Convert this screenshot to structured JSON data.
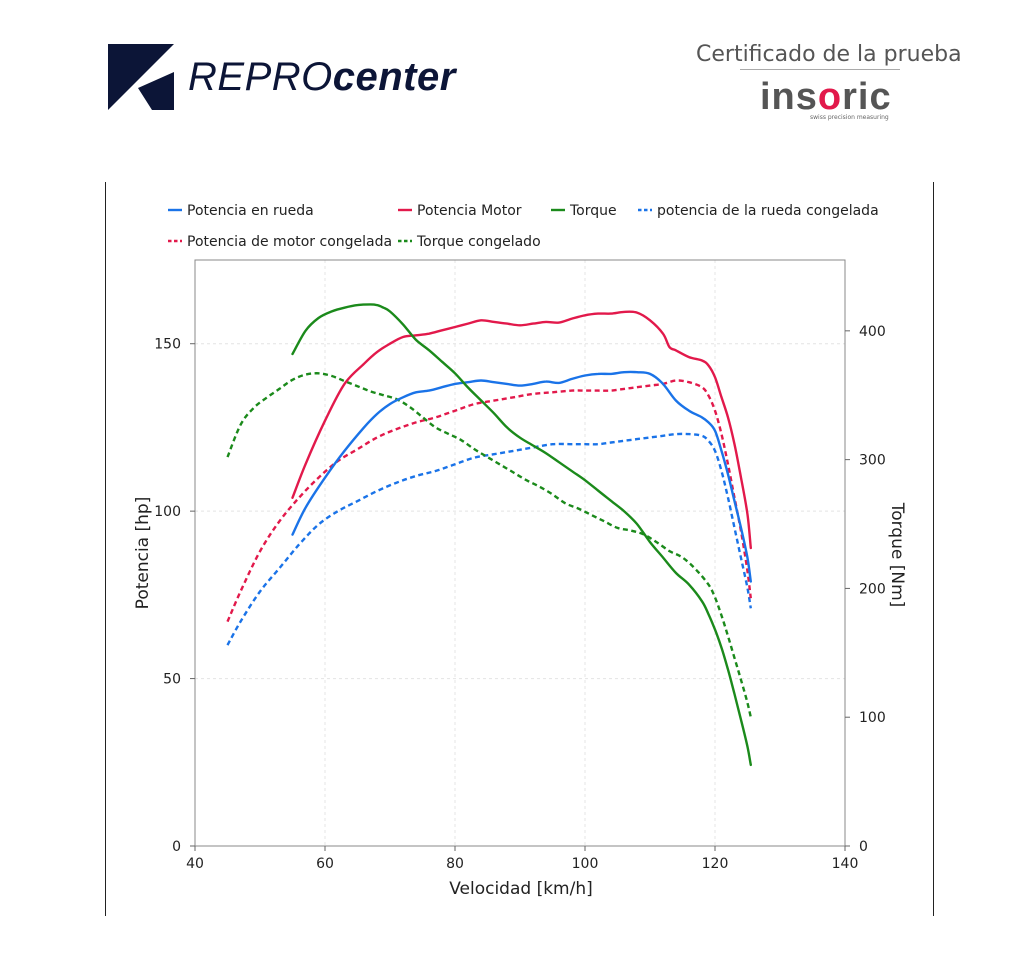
{
  "header": {
    "brand_light": "REPRO",
    "brand_bold": "center",
    "cert_title": "Certificado de la prueba",
    "partner_pre": "ins",
    "partner_o": "o",
    "partner_post": "ric",
    "partner_tagline": "swiss precision measuring"
  },
  "colors": {
    "brand_navy": "#0c1537",
    "red": "#e2194b",
    "blue": "#1a73e8",
    "green": "#1b8a1b"
  },
  "chart_data": {
    "type": "line",
    "xlabel": "Velocidad [km/h]",
    "ylabel_left": "Potencia [hp]",
    "ylabel_right": "Torque [Nm]",
    "xlim": [
      40,
      140
    ],
    "ylim_left": [
      0,
      175
    ],
    "ylim_right": [
      0,
      455
    ],
    "xticks": [
      40,
      60,
      80,
      100,
      120,
      140
    ],
    "yticks_left": [
      0,
      50,
      100,
      150
    ],
    "yticks_right": [
      0,
      100,
      200,
      300,
      400
    ],
    "grid": true,
    "legend_position": "top",
    "series": [
      {
        "name": "Potencia en rueda",
        "axis": "left",
        "color": "#1a73e8",
        "dashed": false,
        "x": [
          55,
          57,
          60,
          63,
          66,
          68,
          70,
          72,
          74,
          76,
          78,
          80,
          82,
          84,
          86,
          88,
          90,
          92,
          94,
          96,
          98,
          100,
          102,
          104,
          106,
          108,
          110,
          112,
          114,
          116,
          118,
          119,
          120,
          121,
          122,
          123,
          124,
          125,
          125.5
        ],
        "y": [
          93,
          101,
          110,
          118,
          125,
          129,
          132,
          134,
          135.5,
          136,
          137,
          138,
          138.5,
          139,
          138.5,
          138,
          137.5,
          138,
          138.7,
          138.3,
          139.5,
          140.5,
          141,
          141,
          141.5,
          141.5,
          141,
          138,
          133,
          130,
          128,
          126.5,
          124,
          118,
          111,
          103,
          95,
          86,
          79
        ]
      },
      {
        "name": "Potencia Motor",
        "axis": "left",
        "color": "#e2194b",
        "dashed": false,
        "x": [
          55,
          57,
          60,
          63,
          66,
          68,
          70,
          72,
          74,
          76,
          78,
          80,
          82,
          84,
          86,
          88,
          90,
          92,
          94,
          96,
          98,
          100,
          102,
          104,
          106,
          108,
          110,
          112,
          113,
          114,
          116,
          118,
          119,
          120,
          121,
          122,
          123,
          124,
          125,
          125.5
        ],
        "y": [
          104,
          114,
          127,
          138,
          144,
          147.5,
          150,
          152,
          152.5,
          153,
          154,
          155,
          156,
          157,
          156.5,
          156,
          155.5,
          156,
          156.5,
          156.3,
          157.5,
          158.5,
          159,
          159,
          159.5,
          159.3,
          157,
          153,
          149,
          148,
          146,
          145,
          143.5,
          140,
          134,
          128,
          120,
          110,
          99,
          89
        ]
      },
      {
        "name": "Torque",
        "axis": "right",
        "color": "#1b8a1b",
        "dashed": false,
        "x": [
          55,
          57,
          59,
          61,
          63,
          65,
          67,
          68,
          69,
          70,
          72,
          74,
          76,
          78,
          80,
          82,
          84,
          86,
          88,
          90,
          92,
          94,
          96,
          98,
          100,
          102,
          104,
          106,
          108,
          110,
          112,
          114,
          116,
          118,
          119,
          120,
          121,
          122,
          123,
          124,
          125,
          125.5
        ],
        "y": [
          382,
          400,
          410,
          415,
          418,
          420,
          420.5,
          420,
          418,
          415,
          405,
          393,
          385,
          376,
          367,
          356,
          346,
          336,
          325,
          317,
          311,
          305,
          298,
          291,
          284,
          276,
          268,
          260,
          250,
          236,
          224,
          212,
          203,
          190,
          180,
          168,
          154,
          137,
          118,
          98,
          77,
          63
        ]
      },
      {
        "name": "potencia de la rueda congelada",
        "axis": "left",
        "color": "#1a73e8",
        "dashed": true,
        "x": [
          45,
          47,
          50,
          53,
          56,
          59,
          62,
          65,
          68,
          71,
          74,
          77,
          80,
          83,
          86,
          89,
          92,
          95,
          98,
          100,
          102,
          104,
          106,
          108,
          110,
          112,
          114,
          116,
          118,
          119,
          120,
          121,
          122,
          123,
          124,
          125,
          125.5
        ],
        "y": [
          60,
          67,
          76,
          83,
          90,
          96,
          100,
          103,
          106,
          108.5,
          110.5,
          112,
          114,
          116,
          117,
          118,
          119,
          120,
          120,
          120,
          120,
          120.5,
          121,
          121.5,
          122,
          122.5,
          123,
          123,
          122.5,
          121,
          118,
          112,
          104,
          95,
          86,
          77,
          71
        ]
      },
      {
        "name": "Potencia de motor congelada",
        "axis": "left",
        "color": "#e2194b",
        "dashed": true,
        "x": [
          45,
          47,
          50,
          53,
          56,
          59,
          62,
          65,
          68,
          71,
          74,
          77,
          80,
          83,
          86,
          89,
          92,
          95,
          98,
          100,
          102,
          104,
          106,
          108,
          110,
          112,
          114,
          116,
          118,
          119,
          120,
          121,
          122,
          123,
          124,
          125,
          125.5
        ],
        "y": [
          67,
          76,
          88,
          97,
          104,
          110,
          115,
          118.5,
          122,
          124.5,
          126.5,
          128,
          130,
          132,
          133,
          134,
          135,
          135.5,
          136,
          136,
          136,
          136,
          136.5,
          137,
          137.5,
          138,
          139,
          138.5,
          137,
          134.5,
          130,
          123,
          114,
          104,
          94,
          82,
          74
        ]
      },
      {
        "name": "Torque congelado",
        "axis": "right",
        "color": "#1b8a1b",
        "dashed": true,
        "x": [
          45,
          47,
          49,
          51,
          53,
          55,
          57,
          59,
          61,
          63,
          65,
          67,
          69,
          71,
          73,
          75,
          77,
          79,
          81,
          83,
          85,
          87,
          89,
          91,
          93,
          95,
          97,
          99,
          101,
          103,
          105,
          107,
          109,
          111,
          113,
          115,
          117,
          119,
          120,
          121,
          122,
          123,
          124,
          125,
          125.5
        ],
        "y": [
          302,
          327,
          340,
          348,
          355,
          362,
          366,
          367,
          365,
          361,
          357,
          353,
          350,
          347,
          341,
          333,
          325,
          320,
          315,
          308,
          302,
          296,
          290,
          284,
          279,
          273,
          266,
          262,
          257,
          252,
          247,
          245,
          242,
          236,
          229,
          224,
          215,
          203,
          193,
          179,
          163,
          146,
          129,
          111,
          100
        ]
      }
    ]
  }
}
